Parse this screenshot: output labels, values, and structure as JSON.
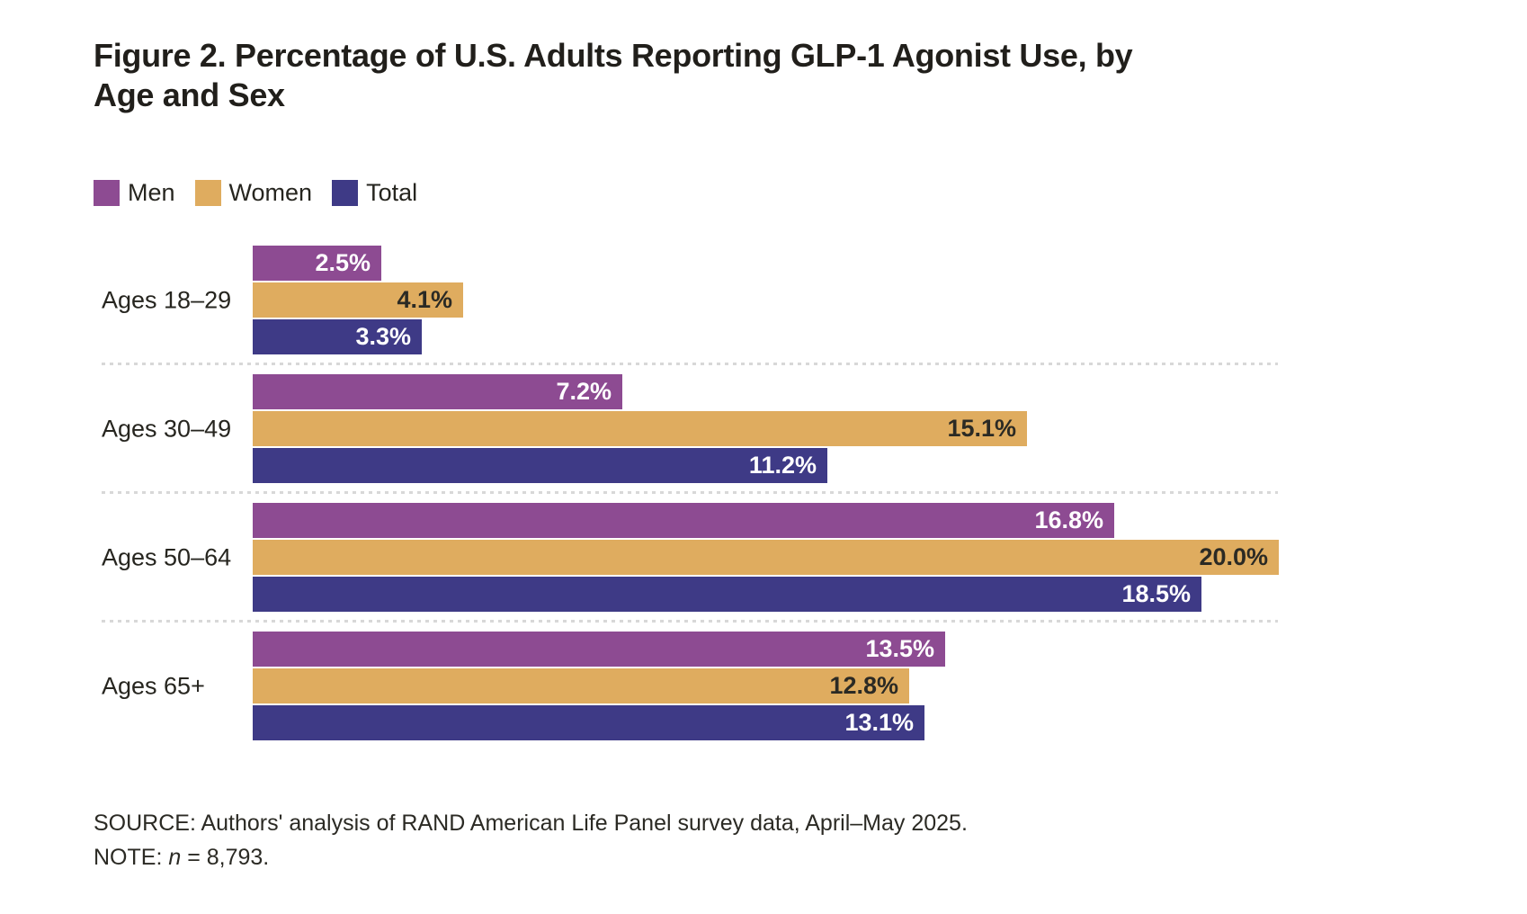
{
  "figure": {
    "title_line1": "Figure 2. Percentage of U.S. Adults Reporting GLP-1 Agonist Use, by",
    "title_line2": "Age and Sex",
    "source": "SOURCE: Authors' analysis of RAND American Life Panel survey data, April–May 2025.",
    "note_prefix": "NOTE: ",
    "note_var": "n",
    "note_suffix": " = 8,793."
  },
  "chart_data": {
    "type": "bar",
    "orientation": "horizontal",
    "title": "Figure 2. Percentage of U.S. Adults Reporting GLP-1 Agonist Use, by Age and Sex",
    "categories": [
      "Ages 18–29",
      "Ages 30–49",
      "Ages 50–64",
      "Ages 65+"
    ],
    "series": [
      {
        "name": "Men",
        "color": "#8D4B92",
        "label_color": "#FFFFFF",
        "values": [
          2.5,
          7.2,
          16.8,
          13.5
        ]
      },
      {
        "name": "Women",
        "color": "#DFAC5F",
        "label_color": "#2B2A24",
        "values": [
          4.1,
          15.1,
          20.0,
          12.8
        ]
      },
      {
        "name": "Total",
        "color": "#3E3A86",
        "label_color": "#FFFFFF",
        "values": [
          3.3,
          11.2,
          18.5,
          13.1
        ]
      }
    ],
    "value_labels": [
      [
        "2.5%",
        "7.2%",
        "16.8%",
        "13.5%"
      ],
      [
        "4.1%",
        "15.1%",
        "20.0%",
        "12.8%"
      ],
      [
        "3.3%",
        "11.2%",
        "18.5%",
        "13.1%"
      ]
    ],
    "xlim": [
      0,
      20
    ],
    "xlabel": "",
    "ylabel": "",
    "grid": "dotted-row-separators",
    "legend_position": "top-left",
    "legend_labels": [
      "Men",
      "Women",
      "Total"
    ],
    "value_label_placement": "inside-end"
  },
  "colors": {
    "background": "#FFFFFF",
    "separator": "#D8D8D8",
    "title_text": "#211F1B",
    "body_text": "#26251F"
  }
}
